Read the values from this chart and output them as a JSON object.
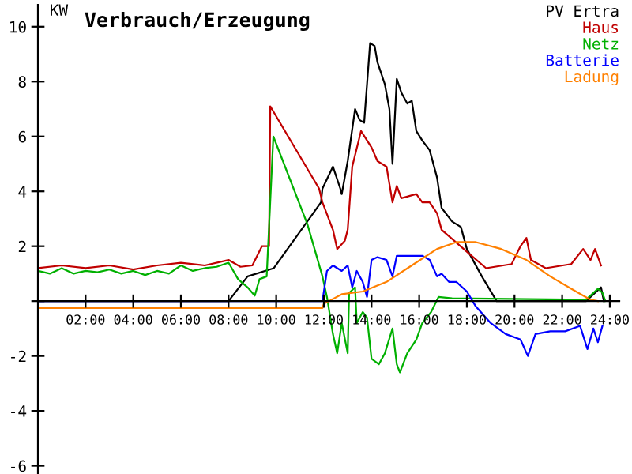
{
  "chart_data": {
    "type": "line",
    "title": "Verbrauch/Erzeugung",
    "ylabel": "KW",
    "xlim": [
      0,
      24.4
    ],
    "ylim": [
      -6.3,
      10.8
    ],
    "xticks": [
      {
        "value": 2,
        "label": "02:00"
      },
      {
        "value": 4,
        "label": "04:00"
      },
      {
        "value": 6,
        "label": "06:00"
      },
      {
        "value": 8,
        "label": "08:00"
      },
      {
        "value": 10,
        "label": "10:00"
      },
      {
        "value": 12,
        "label": "12:00"
      },
      {
        "value": 14,
        "label": "14:00"
      },
      {
        "value": 16,
        "label": "16:00"
      },
      {
        "value": 18,
        "label": "18:00"
      },
      {
        "value": 20,
        "label": "20:00"
      },
      {
        "value": 22,
        "label": "22:00"
      },
      {
        "value": 24,
        "label": "24:00"
      }
    ],
    "yticks": [
      -6,
      -4,
      -2,
      {
        "value": 0,
        "label": null
      },
      2,
      4,
      6,
      8,
      10
    ],
    "grid": false,
    "legend": "top right",
    "line_style": "solid",
    "marker": "none",
    "series": [
      {
        "name": "PV Ertra",
        "color": "#000000",
        "x": [
          0,
          8.0,
          8.8,
          9.9,
          11.88,
          11.94,
          12.38,
          12.69,
          12.75,
          13.0,
          13.31,
          13.5,
          13.69,
          13.94,
          14.13,
          14.25,
          14.56,
          14.75,
          14.88,
          15.06,
          15.25,
          15.5,
          15.69,
          15.88,
          16.13,
          16.44,
          16.75,
          16.94,
          17.38,
          17.75,
          18.0,
          18.63,
          19.25,
          23.0,
          23.63,
          23.75
        ],
        "values": [
          0,
          0,
          0.9,
          1.2,
          3.6,
          4.1,
          4.9,
          4.1,
          3.9,
          5.1,
          7.0,
          6.6,
          6.5,
          9.4,
          9.3,
          8.7,
          7.9,
          7.0,
          5.0,
          8.1,
          7.6,
          7.2,
          7.3,
          6.2,
          5.85,
          5.5,
          4.5,
          3.4,
          2.9,
          2.7,
          1.9,
          0.9,
          0,
          0,
          0.5,
          0
        ]
      },
      {
        "name": "Haus",
        "color": "#c00000",
        "x": [
          0,
          1,
          2,
          3,
          4,
          5,
          6,
          7,
          8,
          8.5,
          9.0,
          9.4,
          9.7,
          9.75,
          11.8,
          11.94,
          12.38,
          12.56,
          12.88,
          13.0,
          13.19,
          13.56,
          14.0,
          14.25,
          14.63,
          14.88,
          15.06,
          15.25,
          15.88,
          16.13,
          16.44,
          16.75,
          16.94,
          18.0,
          18.81,
          19.88,
          20.25,
          20.5,
          20.69,
          21.31,
          22.38,
          22.88,
          23.19,
          23.38,
          23.63
        ],
        "values": [
          1.2,
          1.3,
          1.2,
          1.3,
          1.15,
          1.3,
          1.4,
          1.3,
          1.5,
          1.25,
          1.3,
          2.0,
          2.0,
          7.1,
          4.1,
          3.6,
          2.6,
          1.9,
          2.2,
          2.6,
          4.9,
          6.2,
          5.6,
          5.1,
          4.9,
          3.6,
          4.2,
          3.75,
          3.9,
          3.6,
          3.6,
          3.2,
          2.6,
          1.8,
          1.2,
          1.35,
          2.0,
          2.3,
          1.5,
          1.2,
          1.35,
          1.9,
          1.5,
          1.9,
          1.3
        ]
      },
      {
        "name": "Netz",
        "color": "#00b000",
        "x": [
          0,
          0.5,
          1,
          1.5,
          2,
          2.5,
          3,
          3.5,
          4,
          4.5,
          5,
          5.5,
          6,
          6.5,
          7,
          7.5,
          8,
          8.4,
          8.8,
          9.1,
          9.3,
          9.6,
          9.88,
          11.31,
          11.94,
          12.13,
          12.38,
          12.56,
          12.75,
          13.0,
          13.06,
          13.31,
          13.38,
          13.63,
          13.81,
          14.0,
          14.31,
          14.56,
          14.88,
          15.06,
          15.19,
          15.5,
          15.88,
          16.13,
          16.5,
          16.81,
          17.38,
          23.0,
          23.5,
          23.69,
          23.81
        ],
        "values": [
          1.1,
          1.0,
          1.2,
          1.0,
          1.1,
          1.05,
          1.15,
          1.0,
          1.1,
          0.95,
          1.1,
          1.0,
          1.3,
          1.1,
          1.2,
          1.25,
          1.4,
          0.8,
          0.5,
          0.2,
          0.8,
          0.9,
          6.0,
          2.8,
          0.9,
          0.15,
          -1.2,
          -1.9,
          -0.8,
          -1.9,
          0.3,
          0.5,
          -0.8,
          -0.4,
          -0.6,
          -2.1,
          -2.3,
          -1.9,
          -1.0,
          -2.3,
          -2.6,
          -1.9,
          -1.4,
          -0.8,
          -0.4,
          0.15,
          0.1,
          0.05,
          0.45,
          0.3,
          0
        ]
      },
      {
        "name": "Batterie",
        "color": "#0000ff",
        "x": [
          0,
          11.94,
          12.13,
          12.38,
          12.75,
          13.0,
          13.19,
          13.38,
          13.63,
          13.81,
          14.0,
          14.25,
          14.63,
          14.88,
          15.06,
          16.13,
          16.44,
          16.75,
          16.94,
          17.25,
          17.56,
          18.0,
          18.38,
          19.0,
          19.63,
          20.25,
          20.56,
          20.88,
          21.5,
          22.13,
          22.75,
          23.06,
          23.31,
          23.5,
          23.69
        ],
        "values": [
          0,
          0,
          1.1,
          1.3,
          1.1,
          1.3,
          0.5,
          1.1,
          0.7,
          0.15,
          1.5,
          1.6,
          1.5,
          0.9,
          1.65,
          1.65,
          1.5,
          0.9,
          1.0,
          0.7,
          0.7,
          0.35,
          -0.2,
          -0.8,
          -1.2,
          -1.4,
          -2.0,
          -1.2,
          -1.1,
          -1.1,
          -0.9,
          -1.75,
          -1.0,
          -1.5,
          -0.9
        ]
      },
      {
        "name": "Ladung",
        "color": "#ff8000",
        "x": [
          0,
          11.94,
          12.0,
          12.75,
          13.63,
          14.63,
          15.69,
          16.75,
          17.56,
          18.38,
          19.44,
          20.5,
          21.5,
          22.38,
          23.19,
          23.5
        ],
        "values": [
          -0.25,
          -0.25,
          -0.1,
          0.25,
          0.35,
          0.7,
          1.3,
          1.9,
          2.15,
          2.15,
          1.9,
          1.5,
          0.9,
          0.45,
          0.05,
          0
        ]
      }
    ]
  }
}
